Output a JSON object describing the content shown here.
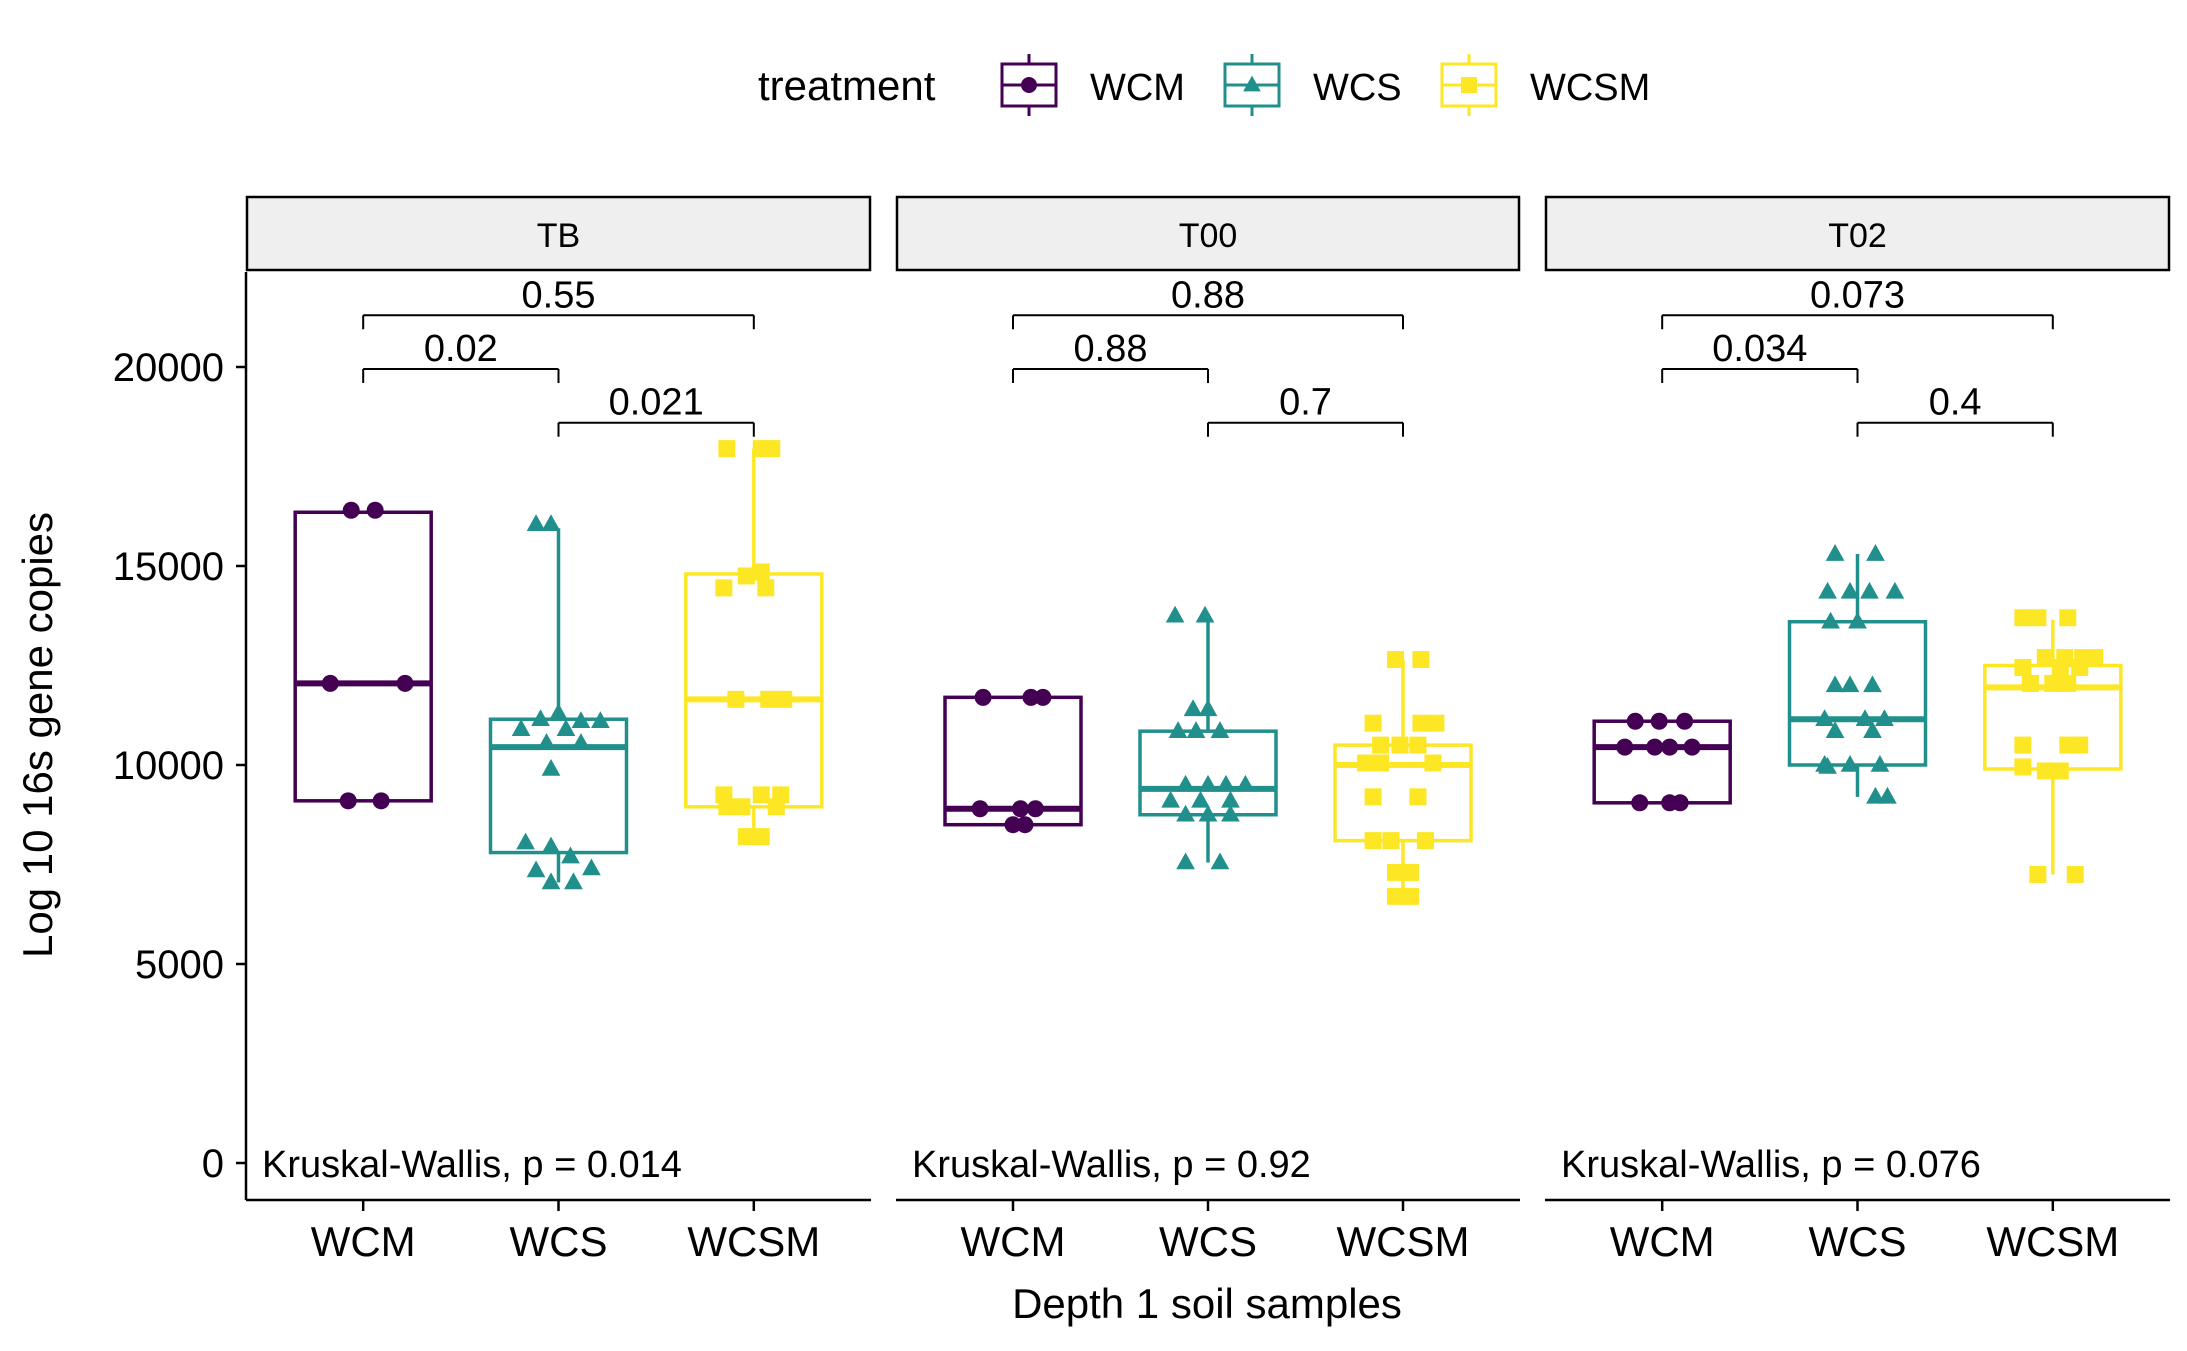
{
  "chart_data": {
    "type": "box",
    "ylabel": "Log 10 16s gene copies",
    "xlabel": "Depth 1 soil samples",
    "ylim": [
      0,
      22700
    ],
    "yticks": [
      0,
      5000,
      10000,
      15000,
      20000
    ],
    "categories": [
      "WCM",
      "WCS",
      "WCSM"
    ],
    "legend": {
      "title": "treatment",
      "position": "top",
      "items": [
        {
          "name": "WCM",
          "color": "#440154",
          "shape": "circle"
        },
        {
          "name": "WCS",
          "color": "#21908C",
          "shape": "triangle"
        },
        {
          "name": "WCSM",
          "color": "#FDE725",
          "shape": "square"
        }
      ]
    },
    "panels": [
      {
        "name": "TB",
        "kruskal_label": "Kruskal-Wallis, p = 0.014",
        "comparisons": [
          {
            "from": 0,
            "to": 2,
            "label": "0.55",
            "y": 21300
          },
          {
            "from": 0,
            "to": 1,
            "label": "0.02",
            "y": 19950
          },
          {
            "from": 1,
            "to": 2,
            "label": "0.021",
            "y": 18600
          }
        ],
        "boxes": [
          {
            "group": "WCM",
            "q1": 9100,
            "median": 12050,
            "q3": 16350,
            "whisker_low": 9100,
            "whisker_high": 16350,
            "points": [
              [
                -0.08,
                16400
              ],
              [
                0.08,
                16400
              ],
              [
                -0.22,
                12050
              ],
              [
                0.28,
                12050
              ],
              [
                -0.1,
                9100
              ],
              [
                0.12,
                9100
              ]
            ]
          },
          {
            "group": "WCS",
            "q1": 7800,
            "median": 10450,
            "q3": 11150,
            "whisker_low": 7050,
            "whisker_high": 15950,
            "points": [
              [
                -0.15,
                16050
              ],
              [
                -0.05,
                16050
              ],
              [
                -0.12,
                11150
              ],
              [
                0.0,
                11300
              ],
              [
                0.15,
                11100
              ],
              [
                0.28,
                11100
              ],
              [
                -0.25,
                10900
              ],
              [
                0.05,
                10900
              ],
              [
                -0.08,
                10550
              ],
              [
                0.15,
                10550
              ],
              [
                -0.05,
                9900
              ],
              [
                -0.22,
                8050
              ],
              [
                -0.05,
                7950
              ],
              [
                0.08,
                7700
              ],
              [
                0.22,
                7400
              ],
              [
                -0.15,
                7350
              ],
              [
                -0.05,
                7050
              ],
              [
                0.1,
                7050
              ]
            ]
          },
          {
            "group": "WCSM",
            "q1": 8950,
            "median": 11650,
            "q3": 14800,
            "whisker_low": 8200,
            "whisker_high": 17950,
            "points": [
              [
                -0.18,
                17950
              ],
              [
                0.05,
                17950
              ],
              [
                0.12,
                17950
              ],
              [
                -0.05,
                14750
              ],
              [
                0.05,
                14850
              ],
              [
                -0.2,
                14450
              ],
              [
                0.08,
                14450
              ],
              [
                -0.12,
                11650
              ],
              [
                0.1,
                11650
              ],
              [
                0.2,
                11650
              ],
              [
                -0.2,
                9250
              ],
              [
                0.05,
                9250
              ],
              [
                0.18,
                9250
              ],
              [
                -0.18,
                8950
              ],
              [
                -0.08,
                8950
              ],
              [
                0.15,
                8950
              ],
              [
                -0.05,
                8200
              ],
              [
                0.05,
                8200
              ]
            ]
          }
        ]
      },
      {
        "name": "T00",
        "kruskal_label": "Kruskal-Wallis, p = 0.92",
        "comparisons": [
          {
            "from": 0,
            "to": 2,
            "label": "0.88",
            "y": 21300
          },
          {
            "from": 0,
            "to": 1,
            "label": "0.88",
            "y": 19950
          },
          {
            "from": 1,
            "to": 2,
            "label": "0.7",
            "y": 18600
          }
        ],
        "boxes": [
          {
            "group": "WCM",
            "q1": 8500,
            "median": 8900,
            "q3": 11700,
            "whisker_low": 8500,
            "whisker_high": 11700,
            "points": [
              [
                -0.2,
                11700
              ],
              [
                0.12,
                11700
              ],
              [
                0.2,
                11700
              ],
              [
                -0.22,
                8900
              ],
              [
                0.05,
                8900
              ],
              [
                0.15,
                8900
              ],
              [
                0.0,
                8500
              ],
              [
                0.08,
                8500
              ]
            ]
          },
          {
            "group": "WCS",
            "q1": 8750,
            "median": 9400,
            "q3": 10850,
            "whisker_low": 7550,
            "whisker_high": 13800,
            "points": [
              [
                -0.22,
                13750
              ],
              [
                -0.02,
                13750
              ],
              [
                -0.1,
                11400
              ],
              [
                0.0,
                11400
              ],
              [
                -0.2,
                10850
              ],
              [
                -0.08,
                10850
              ],
              [
                0.08,
                10850
              ],
              [
                -0.15,
                9500
              ],
              [
                0.0,
                9500
              ],
              [
                0.12,
                9500
              ],
              [
                0.25,
                9500
              ],
              [
                -0.25,
                9100
              ],
              [
                -0.05,
                9100
              ],
              [
                0.15,
                9100
              ],
              [
                -0.15,
                8750
              ],
              [
                0.0,
                8750
              ],
              [
                0.15,
                8750
              ],
              [
                -0.15,
                7550
              ],
              [
                0.08,
                7550
              ]
            ]
          },
          {
            "group": "WCSM",
            "q1": 8100,
            "median": 10000,
            "q3": 10500,
            "whisker_low": 6700,
            "whisker_high": 12650,
            "points": [
              [
                -0.05,
                12650
              ],
              [
                0.12,
                12650
              ],
              [
                -0.2,
                11050
              ],
              [
                0.12,
                11050
              ],
              [
                0.22,
                11050
              ],
              [
                -0.15,
                10500
              ],
              [
                -0.02,
                10500
              ],
              [
                0.1,
                10500
              ],
              [
                -0.25,
                10050
              ],
              [
                -0.15,
                10050
              ],
              [
                0.2,
                10050
              ],
              [
                -0.2,
                9200
              ],
              [
                0.1,
                9200
              ],
              [
                -0.2,
                8100
              ],
              [
                -0.08,
                8100
              ],
              [
                0.15,
                8100
              ],
              [
                -0.05,
                7300
              ],
              [
                0.05,
                7300
              ],
              [
                -0.05,
                6700
              ],
              [
                0.05,
                6700
              ]
            ]
          }
        ]
      },
      {
        "name": "T02",
        "kruskal_label": "Kruskal-Wallis, p = 0.076",
        "comparisons": [
          {
            "from": 0,
            "to": 2,
            "label": "0.073",
            "y": 21300
          },
          {
            "from": 0,
            "to": 1,
            "label": "0.034",
            "y": 19950
          },
          {
            "from": 1,
            "to": 2,
            "label": "0.4",
            "y": 18600
          }
        ],
        "boxes": [
          {
            "group": "WCM",
            "q1": 9050,
            "median": 10450,
            "q3": 11100,
            "whisker_low": 9050,
            "whisker_high": 11100,
            "points": [
              [
                -0.18,
                11100
              ],
              [
                -0.02,
                11100
              ],
              [
                0.15,
                11100
              ],
              [
                -0.25,
                10450
              ],
              [
                -0.05,
                10450
              ],
              [
                0.05,
                10450
              ],
              [
                0.2,
                10450
              ],
              [
                -0.15,
                9050
              ],
              [
                0.05,
                9050
              ],
              [
                0.12,
                9050
              ]
            ]
          },
          {
            "group": "WCS",
            "q1": 10000,
            "median": 11150,
            "q3": 13600,
            "whisker_low": 9200,
            "whisker_high": 15300,
            "points": [
              [
                -0.15,
                15300
              ],
              [
                0.12,
                15300
              ],
              [
                -0.2,
                14350
              ],
              [
                -0.05,
                14350
              ],
              [
                0.08,
                14350
              ],
              [
                0.25,
                14350
              ],
              [
                -0.18,
                13600
              ],
              [
                0.0,
                13600
              ],
              [
                -0.15,
                12000
              ],
              [
                -0.05,
                12000
              ],
              [
                0.1,
                12000
              ],
              [
                -0.22,
                11150
              ],
              [
                0.05,
                11150
              ],
              [
                0.18,
                11150
              ],
              [
                -0.15,
                10850
              ],
              [
                0.1,
                10850
              ],
              [
                -0.22,
                10000
              ],
              [
                -0.05,
                10000
              ],
              [
                0.15,
                10000
              ],
              [
                -0.2,
                9950
              ],
              [
                0.12,
                9200
              ],
              [
                0.2,
                9200
              ]
            ]
          },
          {
            "group": "WCSM",
            "q1": 9900,
            "median": 11950,
            "q3": 12500,
            "whisker_low": 7250,
            "whisker_high": 13650,
            "points": [
              [
                -0.2,
                13700
              ],
              [
                -0.1,
                13700
              ],
              [
                0.1,
                13700
              ],
              [
                -0.05,
                12700
              ],
              [
                0.08,
                12700
              ],
              [
                0.2,
                12700
              ],
              [
                0.28,
                12700
              ],
              [
                -0.2,
                12450
              ],
              [
                0.05,
                12450
              ],
              [
                0.18,
                12450
              ],
              [
                -0.15,
                12050
              ],
              [
                0.0,
                12050
              ],
              [
                0.1,
                12050
              ],
              [
                -0.2,
                10500
              ],
              [
                0.1,
                10500
              ],
              [
                0.18,
                10500
              ],
              [
                -0.2,
                9950
              ],
              [
                -0.05,
                9850
              ],
              [
                0.05,
                9850
              ],
              [
                -0.1,
                7250
              ],
              [
                0.15,
                7250
              ]
            ]
          }
        ]
      }
    ]
  }
}
